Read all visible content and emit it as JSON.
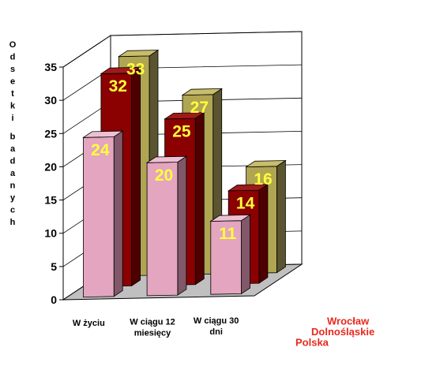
{
  "chart_data": {
    "type": "bar",
    "title": "",
    "ylabel": "Odsetki badanych",
    "ylim": [
      0,
      35
    ],
    "yticks": [
      0,
      5,
      10,
      15,
      20,
      25,
      30,
      35
    ],
    "categories": [
      "W życiu",
      "W ciągu 12 miesięcy",
      "W ciągu 30 dni"
    ],
    "category_lines": [
      [
        "W życiu"
      ],
      [
        "W ciągu 12",
        "miesięcy"
      ],
      [
        "W ciągu 30",
        "dni"
      ]
    ],
    "series": [
      {
        "name": "Wrocław",
        "values": [
          33,
          27,
          16
        ]
      },
      {
        "name": "Dolnośląskie",
        "values": [
          32,
          25,
          14
        ]
      },
      {
        "name": "Polska",
        "values": [
          24,
          20,
          11
        ]
      }
    ],
    "colors": {
      "Wrocław": {
        "front": "#b0a552",
        "side": "#5a5430",
        "top": "#c8bd6a"
      },
      "Dolnośląskie": {
        "front": "#8b0000",
        "side": "#4e0000",
        "top": "#a01a1a"
      },
      "Polska": {
        "front": "#e3a5bf",
        "side": "#80586a",
        "top": "#eebfd2"
      }
    },
    "value_label_color": "#ffff3a",
    "series_label_color": "#e8281e",
    "grid": true,
    "three_d": true
  }
}
